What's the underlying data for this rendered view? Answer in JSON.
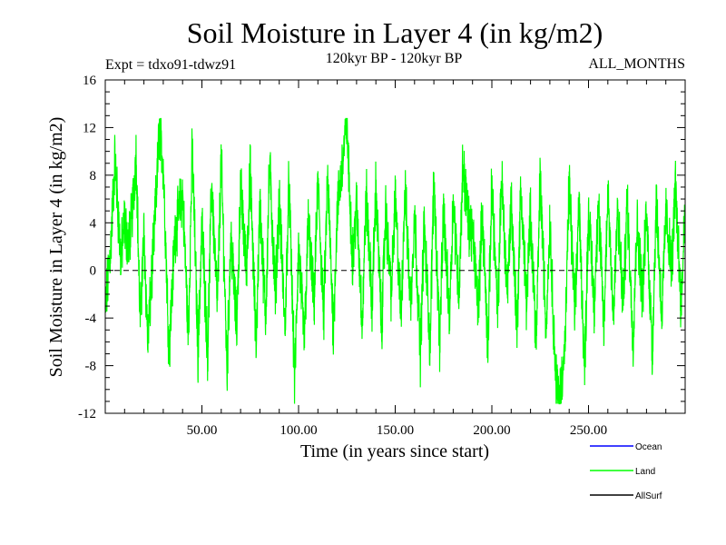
{
  "chart_data": {
    "type": "line",
    "title": "Soil Moisture in Layer 4 (in kg/m2)",
    "subtitle_left": "Expt = tdxo91-tdwz91",
    "subtitle_center": "120kyr BP - 120kyr BP",
    "subtitle_right": "ALL_MONTHS",
    "xlabel": "Time (in years since start)",
    "ylabel": "Soil Moisture in Layer 4 (in kg/m2)",
    "xlim": [
      0,
      300
    ],
    "ylim": [
      -12,
      16
    ],
    "x_ticks": [
      50,
      100,
      150,
      200,
      250
    ],
    "x_tick_labels": [
      "50.00",
      "100.00",
      "150.00",
      "200.00",
      "250.00"
    ],
    "y_ticks": [
      -12,
      -8,
      -4,
      0,
      4,
      8,
      12,
      16
    ],
    "y_tick_labels": [
      "-12",
      "-8",
      "-4",
      "0",
      "4",
      "8",
      "12",
      "16"
    ],
    "zero_line": "dashed",
    "legend_position": "bottom-right",
    "series": [
      {
        "name": "Ocean",
        "color": "#0000ff",
        "values": []
      },
      {
        "name": "Land",
        "color": "#00ff00",
        "sampling": "monthly",
        "keypoints_x": [
          0,
          3,
          5,
          8,
          10,
          12,
          14,
          16,
          18,
          20,
          22,
          25,
          27,
          28,
          30,
          33,
          36,
          40,
          43,
          45,
          48,
          50,
          53,
          55,
          58,
          60,
          63,
          65,
          68,
          70,
          73,
          75,
          78,
          80,
          83,
          85,
          88,
          90,
          93,
          95,
          98,
          100,
          103,
          105,
          108,
          110,
          113,
          115,
          118,
          120,
          122,
          124,
          125,
          126,
          128,
          130,
          133,
          135,
          138,
          140,
          143,
          145,
          148,
          150,
          153,
          155,
          158,
          160,
          163,
          165,
          168,
          170,
          173,
          175,
          178,
          180,
          183,
          185,
          188,
          190,
          193,
          195,
          198,
          200,
          203,
          205,
          208,
          210,
          213,
          215,
          218,
          220,
          223,
          225,
          228,
          230,
          233,
          235,
          238,
          240,
          243,
          245,
          248,
          250,
          253,
          255,
          258,
          260,
          263,
          265,
          268,
          270,
          273,
          275,
          278,
          280,
          283,
          285,
          288,
          290,
          293,
          295,
          298,
          300
        ],
        "keypoints_y": [
          -3.5,
          2.5,
          9.5,
          1.0,
          4.0,
          2.0,
          5.0,
          10.0,
          -4.5,
          3.0,
          -6.0,
          2.0,
          8.5,
          12.0,
          9.0,
          -6.8,
          3.0,
          6.5,
          -5.5,
          10.5,
          -7.0,
          4.0,
          -7.0,
          7.5,
          -3.0,
          9.5,
          -8.5,
          3.0,
          -5.0,
          7.0,
          0.0,
          8.5,
          -6.5,
          5.5,
          -4.0,
          9.0,
          -2.0,
          6.0,
          -5.0,
          7.5,
          -9.5,
          2.0,
          -6.0,
          4.0,
          -3.0,
          7.5,
          -4.0,
          8.0,
          -5.0,
          5.0,
          8.0,
          11.0,
          12.5,
          8.0,
          1.0,
          5.5,
          -4.5,
          6.5,
          -3.0,
          7.0,
          -5.0,
          5.0,
          -2.0,
          6.0,
          -4.0,
          7.0,
          -3.0,
          5.0,
          -7.0,
          4.0,
          -6.5,
          8.0,
          -6.0,
          5.0,
          -4.0,
          6.0,
          -2.0,
          9.0,
          4.0,
          3.0,
          -3.0,
          5.0,
          -6.5,
          7.5,
          -4.0,
          8.0,
          -2.0,
          6.0,
          -5.0,
          7.0,
          -3.0,
          5.0,
          -6.0,
          8.0,
          -5.0,
          4.0,
          -9.0,
          -11.0,
          -6.0,
          7.5,
          -4.0,
          6.0,
          -8.5,
          5.0,
          -3.0,
          6.0,
          -5.0,
          7.0,
          -4.0,
          5.0,
          -3.0,
          6.0,
          -6.0,
          4.0,
          -2.0,
          5.0,
          -7.0,
          6.0,
          -4.0,
          5.0,
          0.0,
          7.0,
          -3.0,
          6.0
        ]
      },
      {
        "name": "AllSurf",
        "color": "#000000",
        "values": []
      }
    ]
  }
}
